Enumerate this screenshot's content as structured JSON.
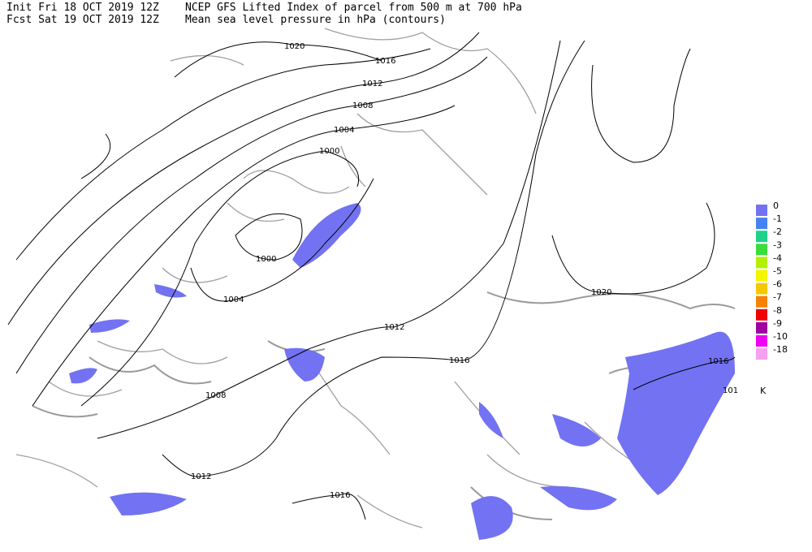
{
  "header": {
    "init": "Init  Fri 18 OCT 2019 12Z",
    "fcst": "Fcst Sat 19 OCT 2019 12Z",
    "title": "NCEP GFS Lifted Index of parcel from 500 m at 700 hPa",
    "subtitle": "Mean sea level pressure in hPa (contours)"
  },
  "legend": {
    "unit": "K",
    "entries": [
      {
        "label": "0",
        "color": "#7272f2"
      },
      {
        "label": "-1",
        "color": "#4682f0"
      },
      {
        "label": "-2",
        "color": "#1ed28c"
      },
      {
        "label": "-3",
        "color": "#3cdc3c"
      },
      {
        "label": "-4",
        "color": "#b4f000"
      },
      {
        "label": "-5",
        "color": "#f5f500"
      },
      {
        "label": "-6",
        "color": "#f5c800"
      },
      {
        "label": "-7",
        "color": "#f58200"
      },
      {
        "label": "-8",
        "color": "#f00000"
      },
      {
        "label": "-9",
        "color": "#a000a0"
      },
      {
        "label": "-10",
        "color": "#f000f0"
      },
      {
        "label": "-18",
        "color": "#f5a0f0"
      }
    ]
  },
  "contours": [
    "1020",
    "1016",
    "1012",
    "1008",
    "1004",
    "1000",
    "1000",
    "1004",
    "1012",
    "1016",
    "1020",
    "1016",
    "101",
    "1008",
    "1012",
    "1016"
  ]
}
